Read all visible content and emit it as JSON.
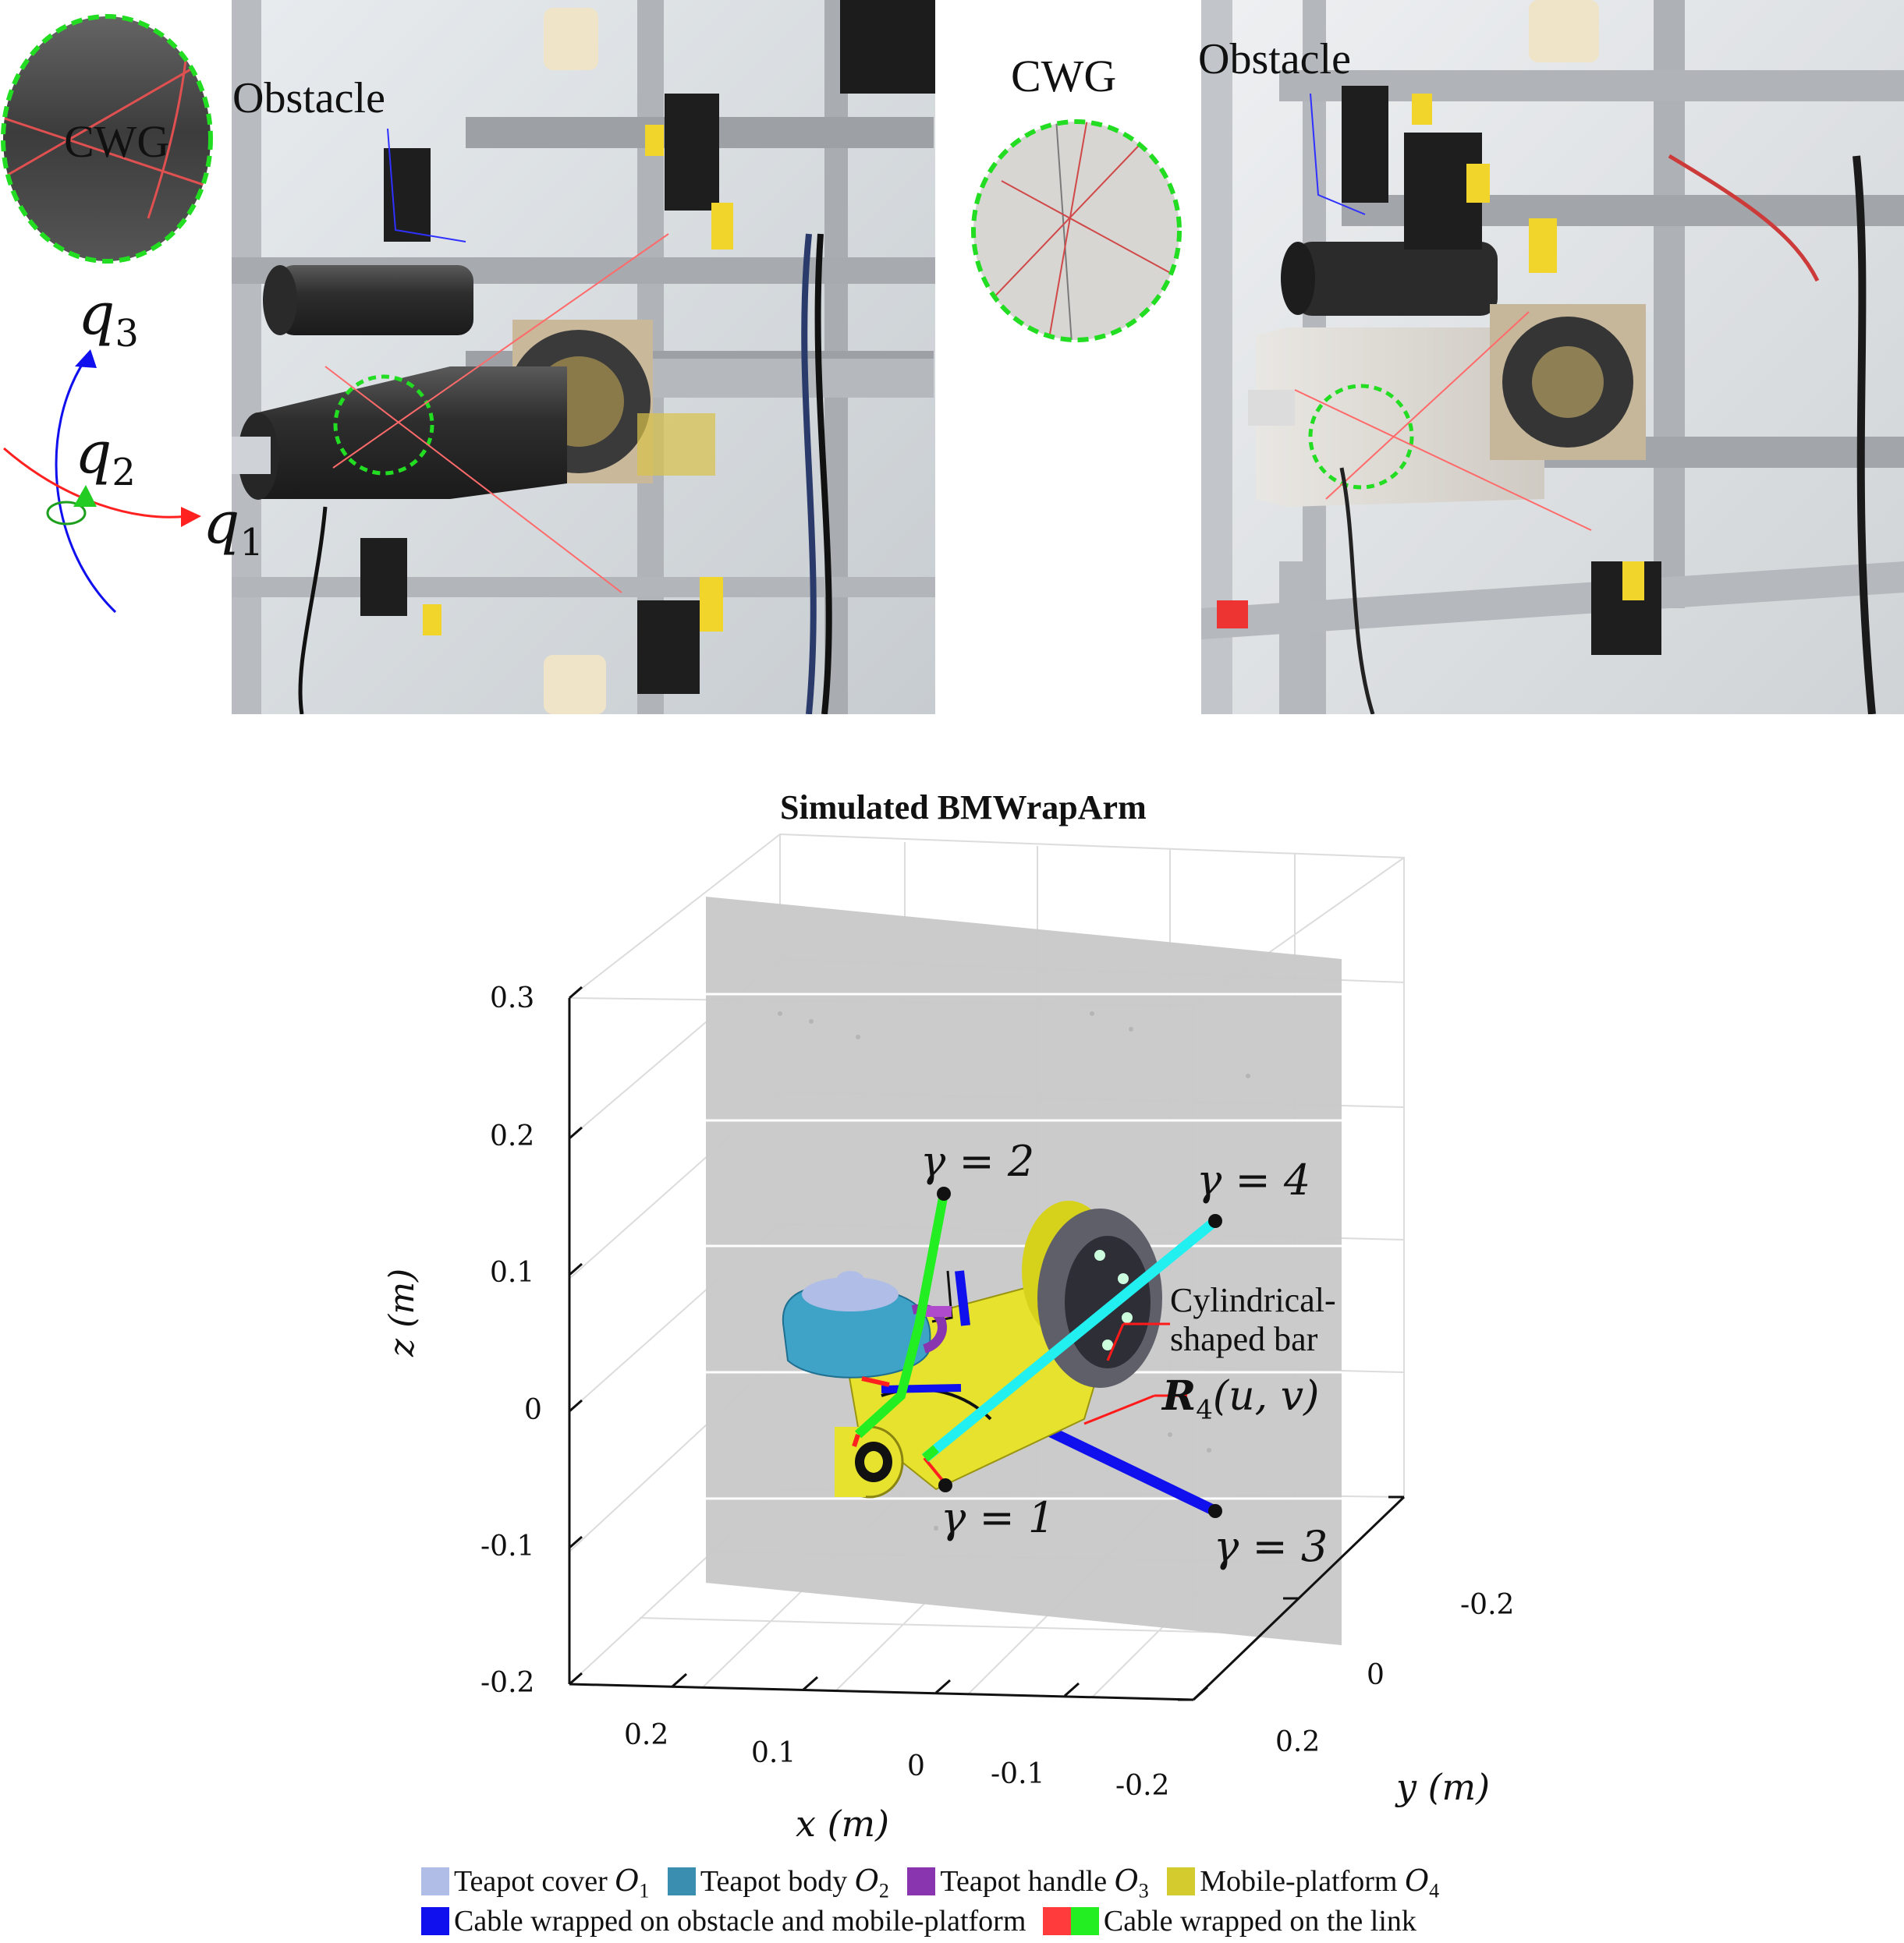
{
  "photos": {
    "left": {
      "inset_label": "CWG",
      "obstacle_label": "Obstacle",
      "q1": "q",
      "q1_sub": "1",
      "q2": "q",
      "q2_sub": "2",
      "q3": "q",
      "q3_sub": "3"
    },
    "right": {
      "inset_label": "CWG",
      "obstacle_label": "Obstacle"
    }
  },
  "plot": {
    "title": "Simulated BMWrapArm",
    "z_ticks": [
      "0.3",
      "0.2",
      "0.1",
      "0",
      "-0.1",
      "-0.2"
    ],
    "x_ticks": [
      "0.2",
      "0.1",
      "0",
      "-0.1",
      "-0.2"
    ],
    "y_ticks": [
      "-0.2",
      "0",
      "0.2"
    ],
    "zlabel": "z (m)",
    "xlabel": "x (m)",
    "ylabel": "y (m)",
    "annotations": {
      "gamma1": "γ = 1",
      "gamma2": "γ = 2",
      "gamma3": "γ = 3",
      "gamma4": "γ = 4",
      "bar_line1": "Cylindrical-",
      "bar_line2": "shaped bar",
      "surface": "R",
      "surface_sub": "4",
      "surface_args": "(u, v)"
    }
  },
  "legend": {
    "row1": [
      {
        "label": "Teapot cover ",
        "math": "O",
        "sub": "1",
        "color": "#b0bde6"
      },
      {
        "label": "Teapot body ",
        "math": "O",
        "sub": "2",
        "color": "#3a8fb0"
      },
      {
        "label": "Teapot handle ",
        "math": "O",
        "sub": "3",
        "color": "#8a35b0"
      },
      {
        "label": "Mobile-platform ",
        "math": "O",
        "sub": "4",
        "color": "#d4cc2e"
      }
    ],
    "row2": [
      {
        "label": "Cable wrapped on obstacle and mobile-platform",
        "color": "#1010ee"
      },
      {
        "label": "Cable wrapped on the link",
        "color": "#ff3b3b",
        "color2": "#22ee22"
      }
    ]
  },
  "colors": {
    "cable_blue": "#1010ee",
    "cable_green": "#22ee22",
    "cable_cyan": "#22f0f0",
    "cable_red": "#ff2020",
    "platform_yellow": "#e6e22e",
    "teapot_body": "#3fa3c8",
    "plane_gray": "#c8c8c8",
    "inset_green": "#22dd22"
  }
}
